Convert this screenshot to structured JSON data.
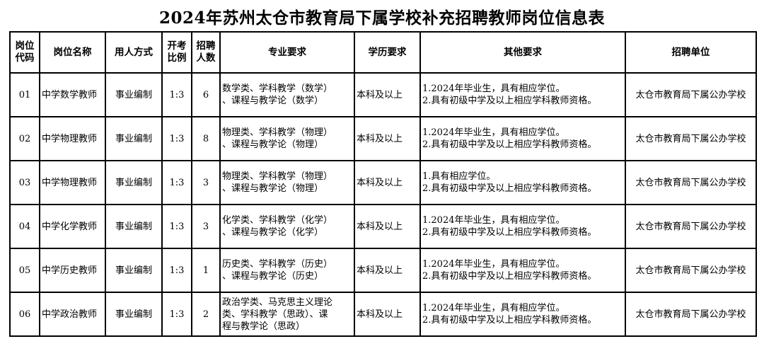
{
  "title": "2024年苏州太仓市教育局下属学校补充招聘教师岗位信息表",
  "headers": [
    "岗位\n代码",
    "岗位名称",
    "用人方式",
    "开考\n比例",
    "招聘\n人数",
    "专业要求",
    "学历要求",
    "其他要求",
    "招聘单位"
  ],
  "rows": [
    {
      "code": "01",
      "name": "中学数学教师",
      "method": "事业编制",
      "ratio": "1:3",
      "count": "6",
      "major": [
        "数学类、学科教学（数学）",
        "、课程与教学论（数学）"
      ],
      "edu": "本科及以上",
      "other": [
        "1.2024年毕业生，具有相应学位。",
        "2.具有初级中学及以上相应学科教师资格。"
      ],
      "unit": "太仓市教育局下属公办学校"
    },
    {
      "code": "02",
      "name": "中学物理教师",
      "method": "事业编制",
      "ratio": "1:3",
      "count": "8",
      "major": [
        "物理类、学科教学（物理）",
        "、课程与教学论（物理）"
      ],
      "edu": "本科及以上",
      "other": [
        "1.2024年毕业生，具有相应学位。",
        "2.具有初级中学及以上相应学科教师资格。"
      ],
      "unit": "太仓市教育局下属公办学校"
    },
    {
      "code": "03",
      "name": "中学物理教师",
      "method": "事业编制",
      "ratio": "1:3",
      "count": "3",
      "major": [
        "物理类、学科教学（物理）",
        "、课程与教学论（物理）"
      ],
      "edu": "本科及以上",
      "other": [
        "1.具有相应学位。",
        "2.具有初级中学及以上相应学科教师资格。"
      ],
      "unit": "太仓市教育局下属公办学校"
    },
    {
      "code": "04",
      "name": "中学化学教师",
      "method": "事业编制",
      "ratio": "1:3",
      "count": "3",
      "major": [
        "化学类、学科教学（化学）",
        "、课程与教学论（化学）"
      ],
      "edu": "本科及以上",
      "other": [
        "1.2024年毕业生，具有相应学位。",
        "2.具有初级中学及以上相应学科教师资格。"
      ],
      "unit": "太仓市教育局下属公办学校"
    },
    {
      "code": "05",
      "name": "中学历史教师",
      "method": "事业编制",
      "ratio": "1:3",
      "count": "1",
      "major": [
        "历史类、学科教学（历史）",
        "、课程与教学论（历史）"
      ],
      "edu": "本科及以上",
      "other": [
        "1.2024年毕业生，具有相应学位。",
        "2.具有初级中学及以上相应学科教师资格。"
      ],
      "unit": "太仓市教育局下属公办学校"
    },
    {
      "code": "06",
      "name": "中学政治教师",
      "method": "事业编制",
      "ratio": "1:3",
      "count": "2",
      "major": [
        "政治学类、马克思主义理论",
        "类、学科教学（思政）、课",
        "程与教学论（思政）"
      ],
      "edu": "本科及以上",
      "other": [
        "1.2024年毕业生，具有相应学位。",
        "2.具有初级中学及以上相应学科教师资格。"
      ],
      "unit": "太仓市教育局下属公办学校"
    }
  ]
}
